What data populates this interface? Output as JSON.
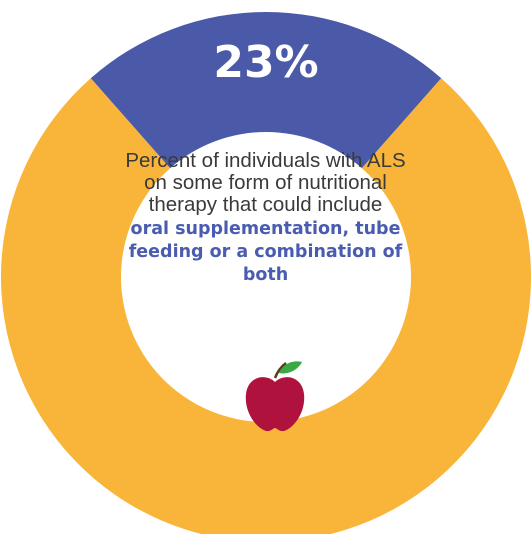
{
  "chart_data": {
    "type": "pie",
    "variant": "donut",
    "slices": [
      {
        "label": "on nutritional therapy",
        "value": 23,
        "color": "#4a5aa8"
      },
      {
        "label": "",
        "value": 77,
        "color": "#f8b53a"
      }
    ],
    "value_label": "23%"
  },
  "center": {
    "description": "Percent of individuals with ALS on some form of nutritional therapy that could include",
    "highlight": "oral supplementation, tube feeding or a combination of both"
  },
  "icons": {
    "apple": "apple-icon"
  }
}
